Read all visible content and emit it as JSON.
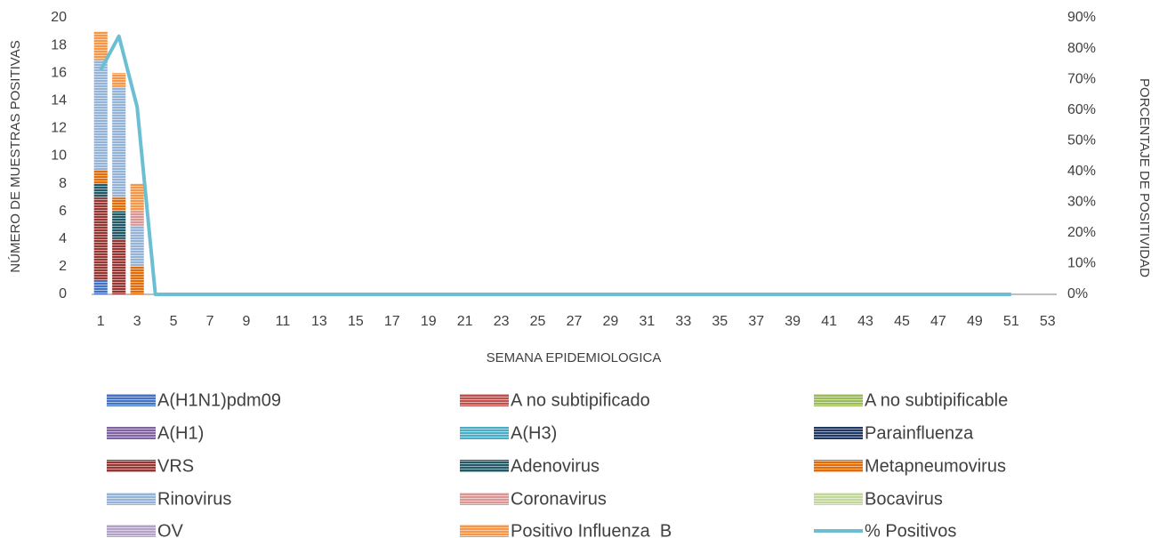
{
  "chart_data": {
    "type": "bar",
    "xlabel": "SEMANA EPIDEMIOLOGICA",
    "ylabel": "NÚMERO DE MUESTRAS POSITIVAS",
    "y2label": "PORCENTAJE DE POSITIVIDAD",
    "categories": [
      "1",
      null,
      "3",
      null,
      "5",
      null,
      "7",
      null,
      "9",
      null,
      "11",
      null,
      "13",
      null,
      "15",
      null,
      "17",
      null,
      "19",
      null,
      "21",
      null,
      "23",
      null,
      "25",
      null,
      "27",
      null,
      "29",
      null,
      "31",
      null,
      "33",
      null,
      "35",
      null,
      "37",
      null,
      "39",
      null,
      "41",
      null,
      "43",
      null,
      "45",
      null,
      "47",
      null,
      "49",
      null,
      "51",
      null,
      "53"
    ],
    "ylim": [
      0,
      20
    ],
    "yticks": [
      0,
      2,
      4,
      6,
      8,
      10,
      12,
      14,
      16,
      18,
      20
    ],
    "y2lim": [
      0,
      90
    ],
    "y2ticks": [
      {
        "value": 0,
        "label": "0%"
      },
      {
        "value": 10,
        "label": "10%"
      },
      {
        "value": 20,
        "label": "20%"
      },
      {
        "value": 30,
        "label": "30%"
      },
      {
        "value": 40,
        "label": "40%"
      },
      {
        "value": 50,
        "label": "50%"
      },
      {
        "value": 60,
        "label": "60%"
      },
      {
        "value": 70,
        "label": "70%"
      },
      {
        "value": 80,
        "label": "80%"
      },
      {
        "value": 90,
        "label": "90%"
      }
    ],
    "series": [
      {
        "name": "A(H1N1)pdm09",
        "color": "#4472c4",
        "values": [
          1,
          0,
          0,
          0,
          0,
          0,
          0,
          0,
          0,
          0,
          0,
          0,
          0,
          0,
          0,
          0,
          0,
          0,
          0,
          0,
          0,
          0,
          0,
          0,
          0,
          0,
          0,
          0,
          0,
          0,
          0,
          0,
          0,
          0,
          0,
          0,
          0,
          0,
          0,
          0,
          0,
          0,
          0,
          0,
          0,
          0,
          0,
          0,
          0,
          0,
          0,
          0,
          0
        ]
      },
      {
        "name": "A no subtipificado",
        "color": "#c0504d",
        "values": [
          0,
          0,
          0,
          0,
          0,
          0,
          0,
          0,
          0,
          0,
          0,
          0,
          0,
          0,
          0,
          0,
          0,
          0,
          0,
          0,
          0,
          0,
          0,
          0,
          0,
          0,
          0,
          0,
          0,
          0,
          0,
          0,
          0,
          0,
          0,
          0,
          0,
          0,
          0,
          0,
          0,
          0,
          0,
          0,
          0,
          0,
          0,
          0,
          0,
          0,
          0,
          0,
          0
        ]
      },
      {
        "name": "A no subtipificable",
        "color": "#9bbb59",
        "values": [
          0,
          0,
          0,
          0,
          0,
          0,
          0,
          0,
          0,
          0,
          0,
          0,
          0,
          0,
          0,
          0,
          0,
          0,
          0,
          0,
          0,
          0,
          0,
          0,
          0,
          0,
          0,
          0,
          0,
          0,
          0,
          0,
          0,
          0,
          0,
          0,
          0,
          0,
          0,
          0,
          0,
          0,
          0,
          0,
          0,
          0,
          0,
          0,
          0,
          0,
          0,
          0,
          0
        ]
      },
      {
        "name": "A(H1)",
        "color": "#8064a2",
        "values": [
          0,
          0,
          0,
          0,
          0,
          0,
          0,
          0,
          0,
          0,
          0,
          0,
          0,
          0,
          0,
          0,
          0,
          0,
          0,
          0,
          0,
          0,
          0,
          0,
          0,
          0,
          0,
          0,
          0,
          0,
          0,
          0,
          0,
          0,
          0,
          0,
          0,
          0,
          0,
          0,
          0,
          0,
          0,
          0,
          0,
          0,
          0,
          0,
          0,
          0,
          0,
          0,
          0
        ]
      },
      {
        "name": "A(H3)",
        "color": "#4bacc6",
        "values": [
          0,
          0,
          0,
          0,
          0,
          0,
          0,
          0,
          0,
          0,
          0,
          0,
          0,
          0,
          0,
          0,
          0,
          0,
          0,
          0,
          0,
          0,
          0,
          0,
          0,
          0,
          0,
          0,
          0,
          0,
          0,
          0,
          0,
          0,
          0,
          0,
          0,
          0,
          0,
          0,
          0,
          0,
          0,
          0,
          0,
          0,
          0,
          0,
          0,
          0,
          0,
          0,
          0
        ]
      },
      {
        "name": "Parainfluenza",
        "color": "#1f3864",
        "values": [
          0,
          0,
          0,
          0,
          0,
          0,
          0,
          0,
          0,
          0,
          0,
          0,
          0,
          0,
          0,
          0,
          0,
          0,
          0,
          0,
          0,
          0,
          0,
          0,
          0,
          0,
          0,
          0,
          0,
          0,
          0,
          0,
          0,
          0,
          0,
          0,
          0,
          0,
          0,
          0,
          0,
          0,
          0,
          0,
          0,
          0,
          0,
          0,
          0,
          0,
          0,
          0,
          0
        ]
      },
      {
        "name": "VRS",
        "color": "#943634",
        "values": [
          6,
          4,
          0,
          0,
          0,
          0,
          0,
          0,
          0,
          0,
          0,
          0,
          0,
          0,
          0,
          0,
          0,
          0,
          0,
          0,
          0,
          0,
          0,
          0,
          0,
          0,
          0,
          0,
          0,
          0,
          0,
          0,
          0,
          0,
          0,
          0,
          0,
          0,
          0,
          0,
          0,
          0,
          0,
          0,
          0,
          0,
          0,
          0,
          0,
          0,
          0,
          0,
          0
        ]
      },
      {
        "name": "Adenovirus",
        "color": "#215967",
        "values": [
          1,
          2,
          0,
          0,
          0,
          0,
          0,
          0,
          0,
          0,
          0,
          0,
          0,
          0,
          0,
          0,
          0,
          0,
          0,
          0,
          0,
          0,
          0,
          0,
          0,
          0,
          0,
          0,
          0,
          0,
          0,
          0,
          0,
          0,
          0,
          0,
          0,
          0,
          0,
          0,
          0,
          0,
          0,
          0,
          0,
          0,
          0,
          0,
          0,
          0,
          0,
          0,
          0
        ]
      },
      {
        "name": "Metapneumovirus",
        "color": "#e36c09",
        "values": [
          1,
          1,
          2,
          0,
          0,
          0,
          0,
          0,
          0,
          0,
          0,
          0,
          0,
          0,
          0,
          0,
          0,
          0,
          0,
          0,
          0,
          0,
          0,
          0,
          0,
          0,
          0,
          0,
          0,
          0,
          0,
          0,
          0,
          0,
          0,
          0,
          0,
          0,
          0,
          0,
          0,
          0,
          0,
          0,
          0,
          0,
          0,
          0,
          0,
          0,
          0,
          0,
          0
        ]
      },
      {
        "name": "Rinovirus",
        "color": "#95b3d7",
        "values": [
          8,
          8,
          3,
          0,
          0,
          0,
          0,
          0,
          0,
          0,
          0,
          0,
          0,
          0,
          0,
          0,
          0,
          0,
          0,
          0,
          0,
          0,
          0,
          0,
          0,
          0,
          0,
          0,
          0,
          0,
          0,
          0,
          0,
          0,
          0,
          0,
          0,
          0,
          0,
          0,
          0,
          0,
          0,
          0,
          0,
          0,
          0,
          0,
          0,
          0,
          0,
          0,
          0
        ]
      },
      {
        "name": "Coronavirus",
        "color": "#d99694",
        "values": [
          0,
          0,
          1,
          0,
          0,
          0,
          0,
          0,
          0,
          0,
          0,
          0,
          0,
          0,
          0,
          0,
          0,
          0,
          0,
          0,
          0,
          0,
          0,
          0,
          0,
          0,
          0,
          0,
          0,
          0,
          0,
          0,
          0,
          0,
          0,
          0,
          0,
          0,
          0,
          0,
          0,
          0,
          0,
          0,
          0,
          0,
          0,
          0,
          0,
          0,
          0,
          0,
          0
        ]
      },
      {
        "name": "Bocavirus",
        "color": "#c3d69b",
        "values": [
          0,
          0,
          0,
          0,
          0,
          0,
          0,
          0,
          0,
          0,
          0,
          0,
          0,
          0,
          0,
          0,
          0,
          0,
          0,
          0,
          0,
          0,
          0,
          0,
          0,
          0,
          0,
          0,
          0,
          0,
          0,
          0,
          0,
          0,
          0,
          0,
          0,
          0,
          0,
          0,
          0,
          0,
          0,
          0,
          0,
          0,
          0,
          0,
          0,
          0,
          0,
          0,
          0
        ]
      },
      {
        "name": "OV",
        "color": "#b3a2c7",
        "values": [
          0,
          0,
          0,
          0,
          0,
          0,
          0,
          0,
          0,
          0,
          0,
          0,
          0,
          0,
          0,
          0,
          0,
          0,
          0,
          0,
          0,
          0,
          0,
          0,
          0,
          0,
          0,
          0,
          0,
          0,
          0,
          0,
          0,
          0,
          0,
          0,
          0,
          0,
          0,
          0,
          0,
          0,
          0,
          0,
          0,
          0,
          0,
          0,
          0,
          0,
          0,
          0,
          0
        ]
      },
      {
        "name": "Positivo Influenza  B",
        "color": "#f79646",
        "values": [
          2,
          1,
          2,
          0,
          0,
          0,
          0,
          0,
          0,
          0,
          0,
          0,
          0,
          0,
          0,
          0,
          0,
          0,
          0,
          0,
          0,
          0,
          0,
          0,
          0,
          0,
          0,
          0,
          0,
          0,
          0,
          0,
          0,
          0,
          0,
          0,
          0,
          0,
          0,
          0,
          0,
          0,
          0,
          0,
          0,
          0,
          0,
          0,
          0,
          0,
          0,
          0,
          0
        ]
      },
      {
        "name": "% Positivos",
        "color": "#6cbfd3",
        "type": "line",
        "axis": "y2",
        "values": [
          73,
          84,
          61,
          0,
          0,
          0,
          0,
          0,
          0,
          0,
          0,
          0,
          0,
          0,
          0,
          0,
          0,
          0,
          0,
          0,
          0,
          0,
          0,
          0,
          0,
          0,
          0,
          0,
          0,
          0,
          0,
          0,
          0,
          0,
          0,
          0,
          0,
          0,
          0,
          0,
          0,
          0,
          0,
          0,
          0,
          0,
          0,
          0,
          0,
          0,
          0,
          null,
          null
        ]
      }
    ]
  }
}
